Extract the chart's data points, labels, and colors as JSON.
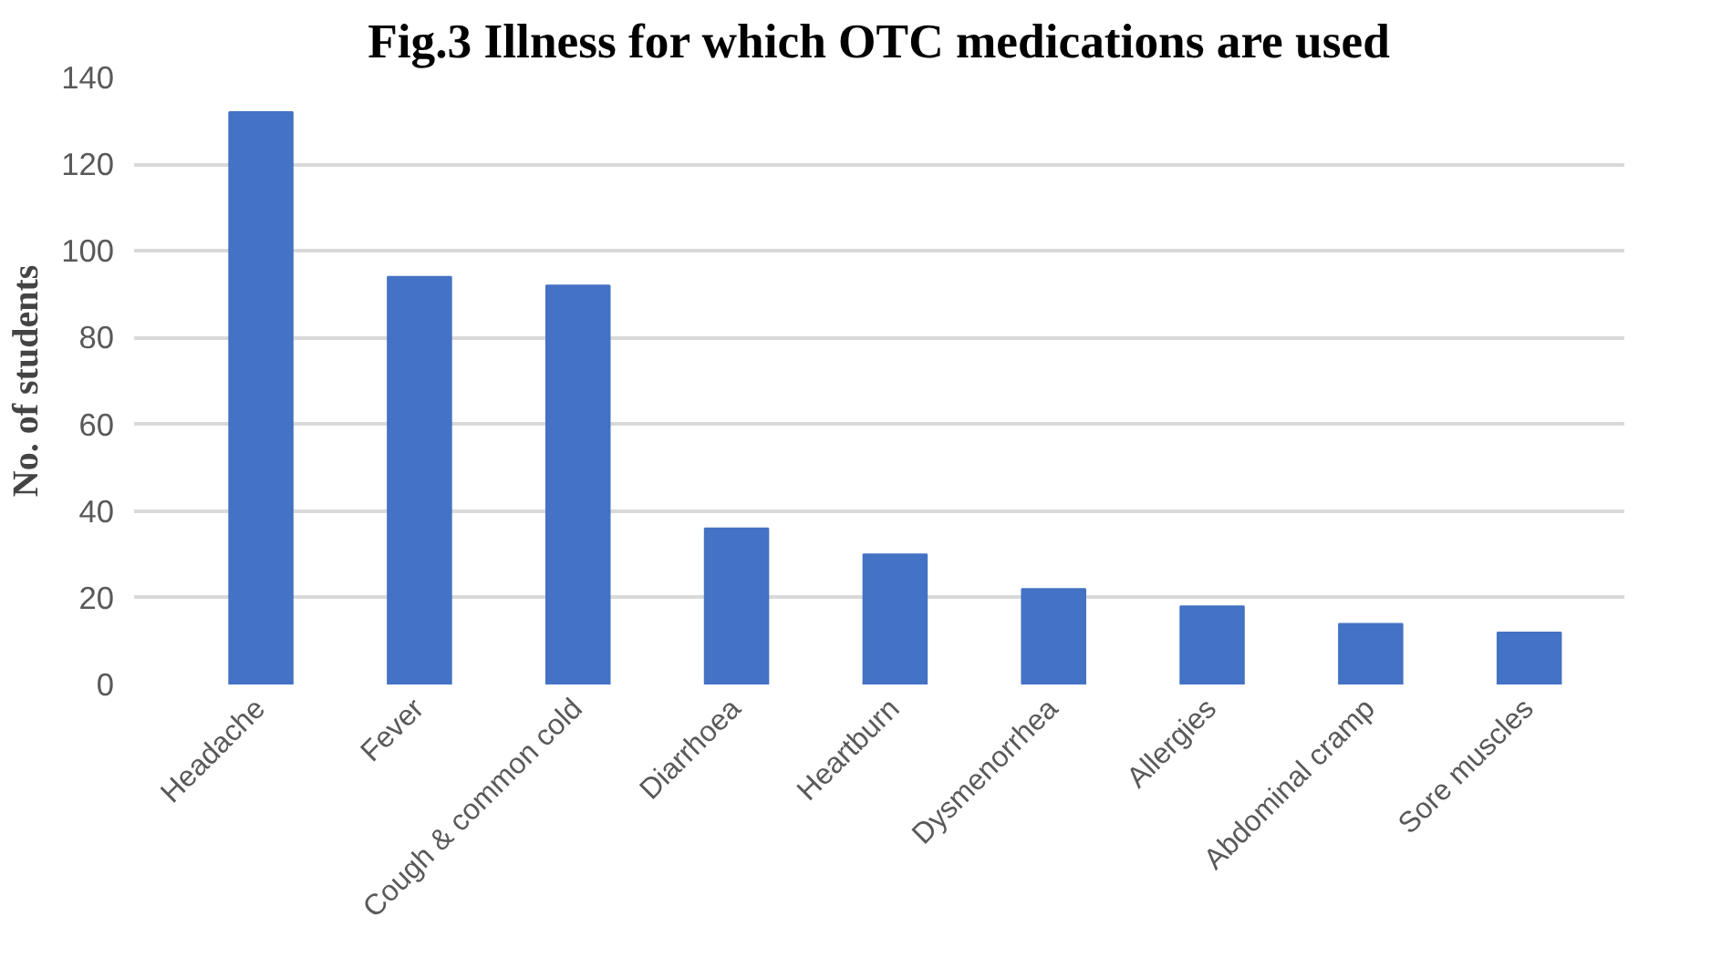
{
  "chart_data": {
    "type": "bar",
    "title": "Fig.3 Illness for which OTC medications are used",
    "ylabel": "No. of students",
    "categories": [
      "Headache",
      "Fever",
      "Cough & common cold",
      "Diarrhoea",
      "Heartburn",
      "Dysmenorrhea",
      "Allergies",
      "Abdominal cramp",
      "Sore muscles"
    ],
    "values": [
      132,
      94,
      92,
      36,
      30,
      22,
      18,
      14,
      12
    ],
    "color": "#4472c4",
    "ylim": [
      0,
      140
    ],
    "yticks": [
      0,
      20,
      40,
      60,
      80,
      100,
      120,
      140
    ],
    "grid": "y"
  }
}
